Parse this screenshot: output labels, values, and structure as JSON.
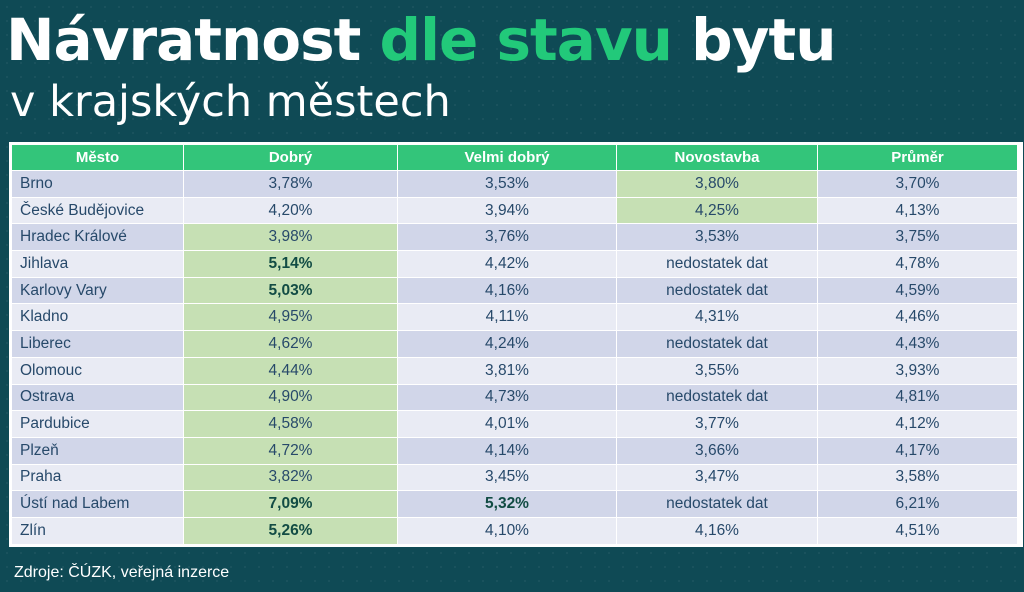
{
  "title": {
    "part1": "Návratnost ",
    "accent": "dle stavu",
    "part2": " bytu"
  },
  "subtitle": "v krajských městech",
  "colors": {
    "accent": "#22c97a",
    "header": "#33c57a",
    "highlight": "#c6e0b4",
    "background": "#0f4a55"
  },
  "table": {
    "headers": [
      "Město",
      "Dobrý",
      "Velmi dobrý",
      "Novostavba",
      "Průměr"
    ],
    "rows": [
      {
        "cells": [
          "Brno",
          "3,78%",
          "3,53%",
          "3,80%",
          "3,70%"
        ],
        "highlight": [
          3
        ],
        "bold": []
      },
      {
        "cells": [
          "České Budějovice",
          "4,20%",
          "3,94%",
          "4,25%",
          "4,13%"
        ],
        "highlight": [
          3
        ],
        "bold": []
      },
      {
        "cells": [
          "Hradec Králové",
          "3,98%",
          "3,76%",
          "3,53%",
          "3,75%"
        ],
        "highlight": [
          1
        ],
        "bold": []
      },
      {
        "cells": [
          "Jihlava",
          "5,14%",
          "4,42%",
          "nedostatek dat",
          "4,78%"
        ],
        "highlight": [
          1
        ],
        "bold": [
          1
        ]
      },
      {
        "cells": [
          "Karlovy Vary",
          "5,03%",
          "4,16%",
          "nedostatek dat",
          "4,59%"
        ],
        "highlight": [
          1
        ],
        "bold": [
          1
        ]
      },
      {
        "cells": [
          "Kladno",
          "4,95%",
          "4,11%",
          "4,31%",
          "4,46%"
        ],
        "highlight": [
          1
        ],
        "bold": []
      },
      {
        "cells": [
          "Liberec",
          "4,62%",
          "4,24%",
          "nedostatek dat",
          "4,43%"
        ],
        "highlight": [
          1
        ],
        "bold": []
      },
      {
        "cells": [
          "Olomouc",
          "4,44%",
          "3,81%",
          "3,55%",
          "3,93%"
        ],
        "highlight": [
          1
        ],
        "bold": []
      },
      {
        "cells": [
          "Ostrava",
          "4,90%",
          "4,73%",
          "nedostatek dat",
          "4,81%"
        ],
        "highlight": [
          1
        ],
        "bold": []
      },
      {
        "cells": [
          "Pardubice",
          "4,58%",
          "4,01%",
          "3,77%",
          "4,12%"
        ],
        "highlight": [
          1
        ],
        "bold": []
      },
      {
        "cells": [
          "Plzeň",
          "4,72%",
          "4,14%",
          "3,66%",
          "4,17%"
        ],
        "highlight": [
          1
        ],
        "bold": []
      },
      {
        "cells": [
          "Praha",
          "3,82%",
          "3,45%",
          "3,47%",
          "3,58%"
        ],
        "highlight": [
          1
        ],
        "bold": []
      },
      {
        "cells": [
          "Ústí nad Labem",
          "7,09%",
          "5,32%",
          "nedostatek dat",
          "6,21%"
        ],
        "highlight": [
          1
        ],
        "bold": [
          1,
          2
        ]
      },
      {
        "cells": [
          "Zlín",
          "5,26%",
          "4,10%",
          "4,16%",
          "4,51%"
        ],
        "highlight": [
          1
        ],
        "bold": [
          1
        ]
      }
    ]
  },
  "footer": "Zdroje: ČÚZK, veřejná inzerce"
}
